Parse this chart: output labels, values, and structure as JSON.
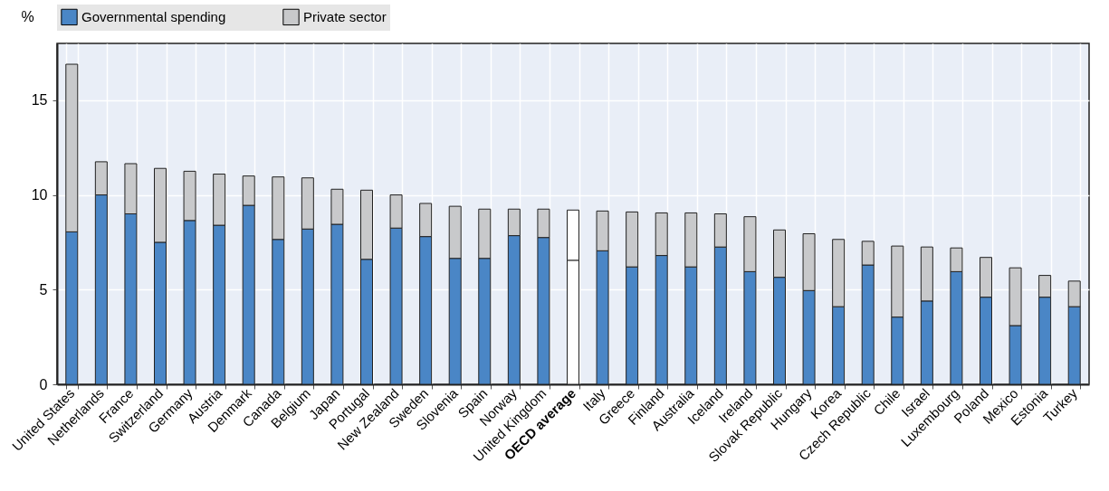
{
  "chart_data": {
    "type": "bar",
    "stacked": true,
    "ylabel": "%",
    "ylim": [
      0,
      18
    ],
    "yticks": [
      0,
      5,
      10,
      15
    ],
    "grid": true,
    "legend": "top",
    "categories": [
      "United States",
      "Netherlands",
      "France",
      "Switzerland",
      "Germany",
      "Austria",
      "Denmark",
      "Canada",
      "Belgium",
      "Japan",
      "Portugal",
      "New Zealand",
      "Sweden",
      "Slovenia",
      "Spain",
      "Norway",
      "United Kingdom",
      "OECD average",
      "Italy",
      "Greece",
      "Finland",
      "Australia",
      "Iceland",
      "Ireland",
      "Slovak Republic",
      "Hungary",
      "Korea",
      "Czech Republic",
      "Chile",
      "Israel",
      "Luxembourg",
      "Poland",
      "Mexico",
      "Estonia",
      "Turkey"
    ],
    "series": [
      {
        "name": "Governmental spending",
        "color": "#4a86c6",
        "values": [
          8.05,
          10.0,
          9.0,
          7.5,
          8.65,
          8.4,
          9.45,
          7.65,
          8.2,
          8.45,
          6.6,
          8.25,
          7.8,
          6.65,
          6.65,
          7.85,
          7.75,
          6.55,
          7.05,
          6.2,
          6.8,
          6.2,
          7.25,
          5.95,
          5.65,
          4.95,
          4.1,
          6.3,
          3.55,
          4.4,
          5.95,
          4.6,
          3.1,
          4.6,
          4.1
        ],
        "colors": [
          "#4a86c6",
          "#4a86c6",
          "#4a86c6",
          "#4a86c6",
          "#4a86c6",
          "#4a86c6",
          "#4a86c6",
          "#4a86c6",
          "#4a86c6",
          "#4a86c6",
          "#4a86c6",
          "#4a86c6",
          "#4a86c6",
          "#4a86c6",
          "#4a86c6",
          "#4a86c6",
          "#4a86c6",
          "#ffffff",
          "#4a86c6",
          "#4a86c6",
          "#4a86c6",
          "#4a86c6",
          "#4a86c6",
          "#4a86c6",
          "#4a86c6",
          "#4a86c6",
          "#4a86c6",
          "#4a86c6",
          "#4a86c6",
          "#4a86c6",
          "#4a86c6",
          "#4a86c6",
          "#4a86c6",
          "#4a86c6",
          "#4a86c6"
        ]
      },
      {
        "name": "Private sector",
        "color": "#c8c9cb",
        "values": [
          8.85,
          1.75,
          2.65,
          3.9,
          2.6,
          2.7,
          1.55,
          3.3,
          2.7,
          1.85,
          3.65,
          1.75,
          1.75,
          2.75,
          2.6,
          1.4,
          1.5,
          2.65,
          2.1,
          2.9,
          2.25,
          2.85,
          1.75,
          2.9,
          2.5,
          3.0,
          3.55,
          1.25,
          3.75,
          2.85,
          1.25,
          2.1,
          3.05,
          1.15,
          1.35
        ],
        "colors": [
          "#c8c9cb",
          "#c8c9cb",
          "#c8c9cb",
          "#c8c9cb",
          "#c8c9cb",
          "#c8c9cb",
          "#c8c9cb",
          "#c8c9cb",
          "#c8c9cb",
          "#c8c9cb",
          "#c8c9cb",
          "#c8c9cb",
          "#c8c9cb",
          "#c8c9cb",
          "#c8c9cb",
          "#c8c9cb",
          "#c8c9cb",
          "#ffffff",
          "#c8c9cb",
          "#c8c9cb",
          "#c8c9cb",
          "#c8c9cb",
          "#c8c9cb",
          "#c8c9cb",
          "#c8c9cb",
          "#c8c9cb",
          "#c8c9cb",
          "#c8c9cb",
          "#c8c9cb",
          "#c8c9cb",
          "#c8c9cb",
          "#c8c9cb",
          "#c8c9cb",
          "#c8c9cb",
          "#c8c9cb"
        ]
      }
    ]
  }
}
